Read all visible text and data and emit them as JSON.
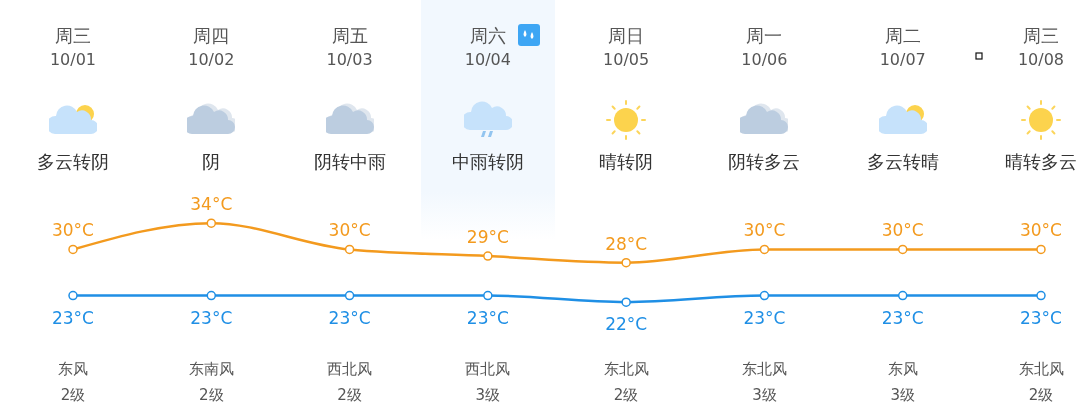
{
  "chart_data": {
    "type": "line",
    "categories": [
      "周三 10/01",
      "周四 10/02",
      "周五 10/03",
      "周六 10/04",
      "周日 10/05",
      "周一 10/06",
      "周二 10/07",
      "周三 10/08"
    ],
    "series": [
      {
        "color": "#f39a1e",
        "values": [
          30,
          34,
          30,
          29,
          28,
          30,
          30,
          30
        ],
        "value_labels": [
          "30°C",
          "34°C",
          "30°C",
          "29°C",
          "28°C",
          "30°C",
          "30°C",
          "30°C"
        ]
      },
      {
        "color": "#1f8fe5",
        "values": [
          23,
          23,
          23,
          23,
          22,
          23,
          23,
          23
        ],
        "value_labels": [
          "23°C",
          "23°C",
          "23°C",
          "23°C",
          "22°C",
          "23°C",
          "23°C",
          "23°C"
        ]
      }
    ],
    "annotations": [
      "多云转阴",
      "阴",
      "阴转中雨",
      "中雨转阴",
      "晴转阴",
      "阴转多云",
      "多云转晴",
      "晴转多云",
      "东风",
      "东南风",
      "西北风",
      "西北风",
      "东北风",
      "东北风",
      "东风",
      "东北风",
      "2级",
      "2级",
      "2级",
      "3级",
      "2级",
      "3级",
      "3级",
      "2级"
    ],
    "bands": [
      {
        "axis": "x",
        "from": "周六 10/04",
        "to": "周六 10/04",
        "color": "#f2f8fe"
      }
    ],
    "marker": "circle",
    "line_style": "solid",
    "grid": false,
    "legend": false
  }
}
